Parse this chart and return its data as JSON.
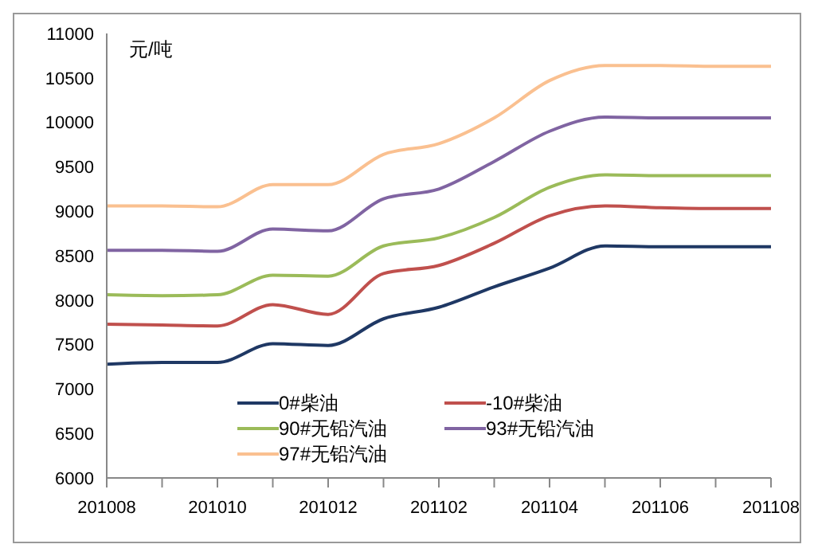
{
  "chart_data": {
    "type": "line",
    "ylabel": "元/吨",
    "categories": [
      "201008",
      null,
      "201010",
      null,
      "201012",
      null,
      "201102",
      null,
      "201104",
      null,
      "201106",
      null,
      "201108"
    ],
    "series": [
      {
        "name": "0#柴油",
        "color": "#1f3864",
        "values": [
          7280,
          7300,
          7300,
          7510,
          7490,
          7790,
          7920,
          8150,
          8360,
          8610,
          8600,
          8600,
          8600
        ]
      },
      {
        "name": "-10#柴油",
        "color": "#c0504d",
        "values": [
          7730,
          7720,
          7710,
          7950,
          7840,
          8300,
          8390,
          8640,
          8950,
          9060,
          9040,
          9030,
          9030
        ]
      },
      {
        "name": "90#无铅汽油",
        "color": "#9bbb59",
        "values": [
          8060,
          8050,
          8060,
          8280,
          8270,
          8610,
          8700,
          8930,
          9270,
          9410,
          9400,
          9400,
          9400
        ]
      },
      {
        "name": "93#无铅汽油",
        "color": "#8064a2",
        "values": [
          8560,
          8560,
          8550,
          8800,
          8780,
          9140,
          9250,
          9560,
          9900,
          10060,
          10050,
          10050,
          10050
        ]
      },
      {
        "name": "97#无铅汽油",
        "color": "#fac090",
        "values": [
          9060,
          9060,
          9050,
          9300,
          9300,
          9640,
          9760,
          10050,
          10470,
          10640,
          10640,
          10630,
          10630
        ]
      }
    ],
    "ylim": [
      6000,
      11000
    ],
    "yticks": [
      6000,
      6500,
      7000,
      7500,
      8000,
      8500,
      9000,
      9500,
      10000,
      10500,
      11000
    ],
    "grid": false,
    "legend": "bottom",
    "marker": "none",
    "line_style": "solid"
  }
}
